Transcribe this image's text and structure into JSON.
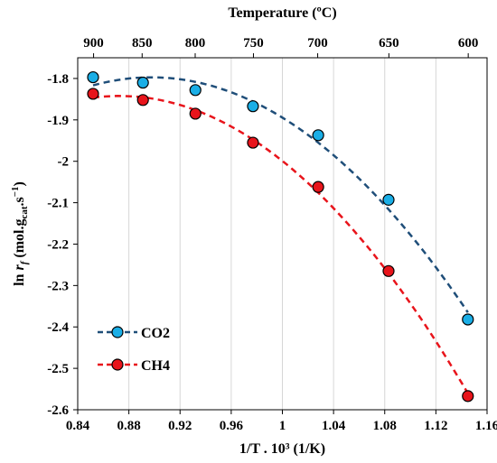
{
  "chart_data": {
    "type": "scatter",
    "title": "",
    "xlabel": "1/T . 10³ (1/K)",
    "ylabel": {
      "prefix": "ln ",
      "r": "r",
      "r_sub": "f",
      "open": " (mol.g",
      "cat_sub": "cat",
      "dot_s": ".s",
      "sup": "−1",
      "close": ")"
    },
    "top_xlabel": "Temperature (ºC)",
    "xlim": [
      0.84,
      1.16
    ],
    "ylim": [
      -2.6,
      -1.75
    ],
    "x_ticks": [
      "0.84",
      "0.88",
      "0.92",
      "0.96",
      "1",
      "1.04",
      "1.08",
      "1.12",
      "1.16"
    ],
    "x_tick_values": [
      0.84,
      0.88,
      0.92,
      0.96,
      1.0,
      1.04,
      1.08,
      1.12,
      1.16
    ],
    "y_ticks": [
      "-1.8",
      "-1.9",
      "-2",
      "-2.1",
      "-2.2",
      "-2.3",
      "-2.4",
      "-2.5",
      "-2.6"
    ],
    "y_tick_values": [
      -1.8,
      -1.9,
      -2.0,
      -2.1,
      -2.2,
      -2.3,
      -2.4,
      -2.5,
      -2.6
    ],
    "top_ticks": [
      "900",
      "850",
      "800",
      "750",
      "700",
      "650",
      "600"
    ],
    "top_tick_values": [
      900,
      850,
      800,
      750,
      700,
      650,
      600
    ],
    "grid": "vertical",
    "legend_position": "bottom-left",
    "series": [
      {
        "name": "CO2",
        "color": "#1aaee6",
        "line_color": "#1f4e79",
        "x": [
          0.852,
          0.891,
          0.932,
          0.977,
          1.028,
          1.083,
          1.145
        ],
        "y": [
          -1.797,
          -1.81,
          -1.828,
          -1.867,
          -1.937,
          -2.093,
          -2.382
        ]
      },
      {
        "name": "CH4",
        "color": "#e8141b",
        "line_color": "#e8141b",
        "x": [
          0.852,
          0.891,
          0.932,
          0.977,
          1.028,
          1.083,
          1.145
        ],
        "y": [
          -1.837,
          -1.852,
          -1.885,
          -1.955,
          -2.062,
          -2.265,
          -2.567
        ]
      }
    ]
  }
}
